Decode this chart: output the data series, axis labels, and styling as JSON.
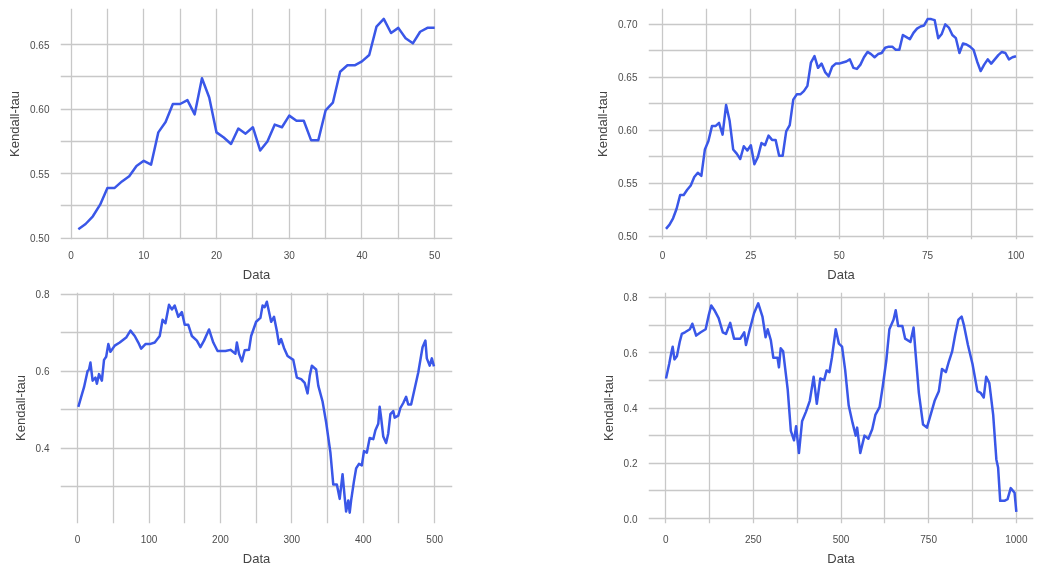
{
  "chart_data": [
    {
      "type": "line",
      "xlabel": "Data",
      "ylabel": "Kendall-tau",
      "color": "#3a57e8",
      "grid": true,
      "x": [
        1,
        2,
        3,
        4,
        5,
        6,
        7,
        8,
        9,
        10,
        11,
        12,
        13,
        14,
        15,
        16,
        17,
        18,
        19,
        20,
        21,
        22,
        23,
        24,
        25,
        26,
        27,
        28,
        29,
        30,
        31,
        32,
        33,
        34,
        35,
        36,
        37,
        38,
        39,
        40,
        41,
        42,
        43,
        44,
        45,
        46,
        47,
        48,
        49,
        50
      ],
      "values": [
        0.507,
        0.511,
        0.517,
        0.526,
        0.539,
        0.539,
        0.544,
        0.548,
        0.556,
        0.56,
        0.557,
        0.582,
        0.59,
        0.604,
        0.604,
        0.607,
        0.596,
        0.624,
        0.609,
        0.582,
        0.578,
        0.573,
        0.585,
        0.581,
        0.586,
        0.568,
        0.575,
        0.588,
        0.586,
        0.595,
        0.591,
        0.591,
        0.576,
        0.576,
        0.599,
        0.605,
        0.629,
        0.634,
        0.634,
        0.637,
        0.642,
        0.664,
        0.67,
        0.659,
        0.663,
        0.655,
        0.651,
        0.66,
        0.663,
        0.663
      ],
      "xlim": [
        -1.45,
        52.45
      ],
      "ylim": [
        0.499,
        0.678
      ],
      "xticks": [
        0,
        {
          "value": 5,
          "label": null
        },
        10,
        {
          "value": 15,
          "label": null
        },
        20,
        {
          "value": 25,
          "label": null
        },
        30,
        {
          "value": 35,
          "label": null
        },
        40,
        {
          "value": 45,
          "label": null
        },
        50
      ],
      "yticks": [
        "0.50",
        {
          "value": 0.525,
          "label": null
        },
        0.55,
        {
          "value": 0.575,
          "label": null
        },
        "0.60",
        {
          "value": 0.625,
          "label": null
        },
        0.65
      ]
    },
    {
      "type": "line",
      "xlabel": "Data",
      "ylabel": "Kendall-tau",
      "color": "#3a57e8",
      "grid": true,
      "x": [
        1,
        2,
        3,
        4,
        5,
        6,
        7,
        8,
        9,
        10,
        11,
        12,
        13,
        14,
        15,
        16,
        17,
        18,
        19,
        20,
        21,
        22,
        23,
        24,
        25,
        26,
        27,
        28,
        29,
        30,
        31,
        32,
        33,
        34,
        35,
        36,
        37,
        38,
        39,
        40,
        41,
        42,
        43,
        44,
        45,
        46,
        47,
        48,
        49,
        50,
        51,
        52,
        53,
        54,
        55,
        56,
        57,
        58,
        59,
        60,
        61,
        62,
        63,
        64,
        65,
        66,
        67,
        68,
        69,
        70,
        71,
        72,
        73,
        74,
        75,
        76,
        77,
        78,
        79,
        80,
        81,
        82,
        83,
        84,
        85,
        86,
        87,
        88,
        89,
        90,
        91,
        92,
        93,
        94,
        95,
        96,
        97,
        98,
        99,
        100
      ],
      "values": [
        0.507,
        0.511,
        0.517,
        0.526,
        0.539,
        0.539,
        0.544,
        0.548,
        0.556,
        0.56,
        0.557,
        0.582,
        0.59,
        0.604,
        0.604,
        0.607,
        0.596,
        0.624,
        0.609,
        0.582,
        0.578,
        0.573,
        0.585,
        0.581,
        0.586,
        0.568,
        0.575,
        0.588,
        0.586,
        0.595,
        0.591,
        0.591,
        0.576,
        0.576,
        0.599,
        0.605,
        0.629,
        0.634,
        0.634,
        0.637,
        0.642,
        0.664,
        0.67,
        0.659,
        0.663,
        0.655,
        0.651,
        0.66,
        0.663,
        0.663,
        0.664,
        0.665,
        0.667,
        0.659,
        0.658,
        0.662,
        0.669,
        0.674,
        0.672,
        0.669,
        0.672,
        0.673,
        0.678,
        0.679,
        0.679,
        0.676,
        0.676,
        0.69,
        0.688,
        0.686,
        0.692,
        0.696,
        0.698,
        0.699,
        0.705,
        0.705,
        0.704,
        0.687,
        0.691,
        0.7,
        0.697,
        0.69,
        0.687,
        0.673,
        0.682,
        0.681,
        0.679,
        0.676,
        0.665,
        0.656,
        0.662,
        0.667,
        0.663,
        0.667,
        0.671,
        0.674,
        0.673,
        0.667,
        0.669,
        0.67
      ],
      "xlim": [
        -3.95,
        104.95
      ],
      "ylim": [
        0.497,
        0.715
      ],
      "xticks": [
        0,
        {
          "value": 12.5,
          "label": null
        },
        25,
        {
          "value": 37.5,
          "label": null
        },
        50,
        {
          "value": 62.5,
          "label": null
        },
        75,
        {
          "value": 87.5,
          "label": null
        },
        100
      ],
      "yticks": [
        "0.50",
        {
          "value": 0.525,
          "label": null
        },
        0.55,
        {
          "value": 0.575,
          "label": null
        },
        "0.60",
        {
          "value": 0.625,
          "label": null
        },
        0.65,
        {
          "value": 0.675,
          "label": null
        },
        "0.70"
      ]
    },
    {
      "type": "line",
      "xlabel": "Data",
      "ylabel": "Kendall-tau",
      "color": "#3a57e8",
      "grid": true,
      "x": [
        1,
        5,
        9,
        14,
        16,
        18,
        21,
        25,
        27,
        30,
        34,
        37,
        40,
        43,
        46,
        52,
        59,
        68,
        74,
        80,
        85,
        89,
        95,
        101,
        108,
        115,
        119,
        123,
        128,
        132,
        136,
        141,
        146,
        150,
        155,
        160,
        167,
        172,
        177,
        184,
        190,
        196,
        207,
        214,
        221,
        223,
        226,
        230,
        234,
        240,
        243,
        250,
        256,
        259,
        262,
        265,
        271,
        275,
        279,
        282,
        285,
        289,
        294,
        302,
        307,
        313,
        318,
        322,
        325,
        328,
        334,
        337,
        343,
        348,
        354,
        358,
        363,
        367,
        371,
        374,
        376,
        379,
        381,
        383,
        387,
        390,
        394,
        398,
        401,
        405,
        409,
        414,
        417,
        421,
        423,
        425,
        428,
        432,
        435,
        438,
        442,
        444,
        449,
        452,
        456,
        460,
        463,
        467,
        471,
        477,
        483,
        487,
        489,
        493,
        496,
        499
      ],
      "values": [
        0.508,
        0.534,
        0.559,
        0.601,
        0.605,
        0.623,
        0.576,
        0.584,
        0.568,
        0.593,
        0.576,
        0.63,
        0.638,
        0.671,
        0.651,
        0.667,
        0.675,
        0.688,
        0.706,
        0.692,
        0.675,
        0.659,
        0.671,
        0.671,
        0.675,
        0.692,
        0.734,
        0.725,
        0.773,
        0.761,
        0.771,
        0.742,
        0.754,
        0.721,
        0.721,
        0.692,
        0.68,
        0.663,
        0.68,
        0.709,
        0.675,
        0.653,
        0.653,
        0.656,
        0.646,
        0.675,
        0.646,
        0.626,
        0.655,
        0.656,
        0.692,
        0.729,
        0.739,
        0.771,
        0.767,
        0.781,
        0.729,
        0.742,
        0.705,
        0.671,
        0.684,
        0.661,
        0.64,
        0.63,
        0.584,
        0.58,
        0.57,
        0.543,
        0.588,
        0.615,
        0.605,
        0.563,
        0.522,
        0.468,
        0.389,
        0.306,
        0.306,
        0.269,
        0.333,
        0.273,
        0.236,
        0.265,
        0.233,
        0.265,
        0.315,
        0.348,
        0.36,
        0.356,
        0.393,
        0.389,
        0.427,
        0.424,
        0.447,
        0.464,
        0.508,
        0.48,
        0.431,
        0.414,
        0.439,
        0.489,
        0.497,
        0.48,
        0.485,
        0.505,
        0.518,
        0.534,
        0.514,
        0.514,
        0.547,
        0.597,
        0.663,
        0.68,
        0.634,
        0.615,
        0.634,
        0.613
      ],
      "xlim": [
        -23.95,
        524.95
      ],
      "ylim": [
        0.205,
        0.805
      ],
      "xticks": [
        0,
        {
          "value": 50,
          "label": null
        },
        100,
        {
          "value": 150,
          "label": null
        },
        200,
        {
          "value": 250,
          "label": null
        },
        300,
        {
          "value": 350,
          "label": null
        },
        400,
        {
          "value": 450,
          "label": null
        },
        500
      ],
      "yticks": [
        {
          "value": 0.3,
          "label": null
        },
        0.4,
        {
          "value": 0.5,
          "label": null
        },
        0.6,
        {
          "value": 0.7,
          "label": null
        },
        0.8
      ]
    },
    {
      "type": "line",
      "xlabel": "Data",
      "ylabel": "Kendall-tau",
      "color": "#3a57e8",
      "grid": true,
      "x": [
        1,
        10,
        16,
        20,
        25,
        32,
        40,
        46,
        55,
        69,
        76,
        87,
        100,
        114,
        123,
        130,
        139,
        151,
        163,
        172,
        184,
        195,
        213,
        224,
        229,
        240,
        252,
        264,
        276,
        285,
        291,
        300,
        307,
        319,
        323,
        328,
        335,
        348,
        357,
        366,
        372,
        380,
        389,
        400,
        411,
        422,
        431,
        441,
        452,
        459,
        467,
        474,
        485,
        494,
        503,
        512,
        522,
        533,
        542,
        546,
        555,
        567,
        578,
        589,
        598,
        610,
        619,
        629,
        638,
        650,
        656,
        663,
        675,
        683,
        698,
        707,
        713,
        722,
        734,
        745,
        758,
        767,
        779,
        788,
        799,
        808,
        817,
        826,
        835,
        844,
        851,
        862,
        875,
        889,
        898,
        907,
        914,
        923,
        934,
        943,
        948,
        954,
        966,
        975,
        984,
        995,
        1000
      ],
      "values": [
        0.507,
        0.559,
        0.599,
        0.622,
        0.576,
        0.587,
        0.639,
        0.668,
        0.674,
        0.685,
        0.705,
        0.662,
        0.674,
        0.685,
        0.737,
        0.771,
        0.754,
        0.725,
        0.674,
        0.668,
        0.708,
        0.651,
        0.651,
        0.674,
        0.628,
        0.685,
        0.743,
        0.779,
        0.731,
        0.656,
        0.685,
        0.645,
        0.582,
        0.582,
        0.547,
        0.616,
        0.605,
        0.467,
        0.317,
        0.283,
        0.334,
        0.237,
        0.352,
        0.386,
        0.426,
        0.513,
        0.415,
        0.507,
        0.501,
        0.536,
        0.53,
        0.582,
        0.685,
        0.633,
        0.622,
        0.536,
        0.409,
        0.346,
        0.3,
        0.329,
        0.237,
        0.3,
        0.289,
        0.323,
        0.375,
        0.403,
        0.478,
        0.57,
        0.685,
        0.72,
        0.754,
        0.697,
        0.697,
        0.651,
        0.639,
        0.691,
        0.593,
        0.455,
        0.34,
        0.329,
        0.386,
        0.426,
        0.461,
        0.541,
        0.53,
        0.57,
        0.605,
        0.668,
        0.72,
        0.731,
        0.697,
        0.628,
        0.559,
        0.461,
        0.455,
        0.438,
        0.513,
        0.49,
        0.375,
        0.214,
        0.185,
        0.064,
        0.064,
        0.07,
        0.11,
        0.093,
        0.024
      ],
      "xlim": [
        -48.95,
        1048.95
      ],
      "ylim": [
        -0.018,
        0.818
      ],
      "xticks": [
        0,
        {
          "value": 125,
          "label": null
        },
        250,
        {
          "value": 375,
          "label": null
        },
        500,
        {
          "value": 625,
          "label": null
        },
        750,
        {
          "value": 875,
          "label": null
        },
        1000
      ],
      "yticks": [
        "0.0",
        {
          "value": 0.1,
          "label": null
        },
        0.2,
        {
          "value": 0.3,
          "label": null
        },
        0.4,
        {
          "value": 0.5,
          "label": null
        },
        0.6,
        {
          "value": 0.7,
          "label": null
        },
        0.8
      ]
    }
  ]
}
